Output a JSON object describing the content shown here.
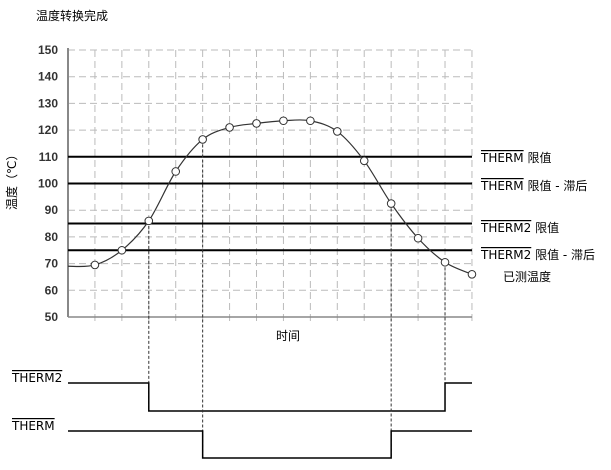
{
  "title": "温度转换完成",
  "chart_data": {
    "type": "line",
    "ylabel": "温度（℃）",
    "xlabel": "时间",
    "ylim": [
      50,
      150
    ],
    "yticks": [
      150,
      140,
      130,
      120,
      110,
      100,
      90,
      80,
      70,
      60,
      50
    ],
    "grid": true,
    "series": [
      {
        "name": "已测温度",
        "x": [
          1,
          2,
          3,
          4,
          5,
          6,
          7,
          8,
          9,
          10,
          11,
          12,
          13,
          14,
          15
        ],
        "values": [
          69.5,
          75,
          86,
          104.5,
          116.5,
          121,
          122.5,
          123.5,
          123.5,
          119.5,
          108.5,
          92.5,
          79.5,
          70.5,
          66
        ]
      }
    ],
    "thresholds": [
      {
        "label_over": "THERM",
        "label": "限值",
        "value": 110
      },
      {
        "label_over": "THERM",
        "label": "限值  - 滞后",
        "value": 100
      },
      {
        "label_over": "THERM2",
        "label": "限值",
        "value": 85
      },
      {
        "label_over": "THERM2",
        "label": "限值  - 滞后",
        "value": 75
      }
    ]
  },
  "signals": [
    {
      "name": "THERM2",
      "low_from": 3,
      "low_to": 14
    },
    {
      "name": "THERM",
      "low_from": 5,
      "low_to": 12
    }
  ]
}
